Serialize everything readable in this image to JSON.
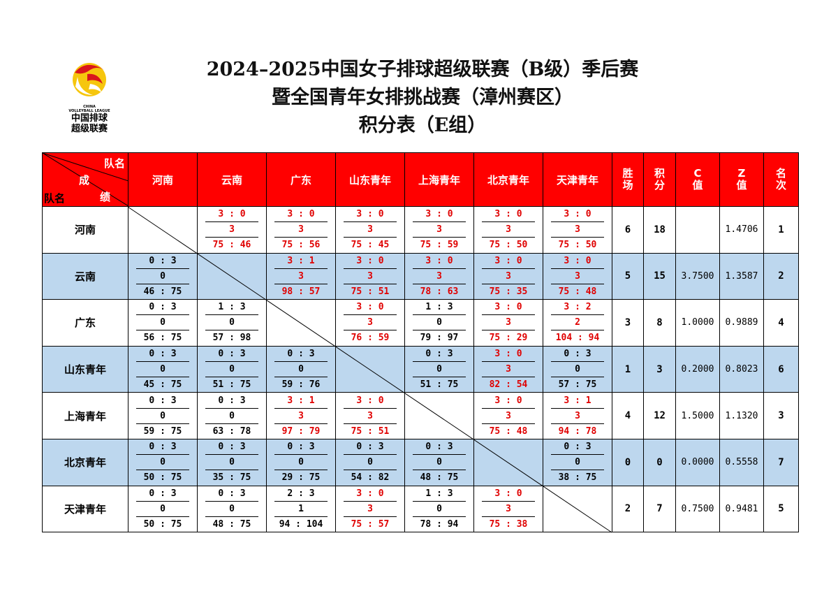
{
  "logo": {
    "lines": [
      "CHINA",
      "VOLLEYBALL LEAGUE",
      "中国排球",
      "超级联赛"
    ]
  },
  "header": {
    "title": [
      "2024–2025中国女子排球超级联赛（B级）季后赛",
      "暨全国青年女排挑战赛（漳州赛区）",
      "积分表（E组）"
    ]
  },
  "table": {
    "corner": {
      "top": "队名",
      "mid": "成",
      "low": "绩",
      "left": "队名"
    },
    "columns": [
      "河南",
      "云南",
      "广东",
      "山东青年",
      "上海青年",
      "北京青年",
      "天津青年"
    ],
    "stat_columns": [
      "胜场",
      "积分",
      "C值",
      "Z值",
      "名次"
    ],
    "rows": [
      {
        "team": "河南",
        "cells": [
          null,
          {
            "score": "3 : 0",
            "points": "3",
            "ratio": "75 : 46"
          },
          {
            "score": "3 : 0",
            "points": "3",
            "ratio": "75 : 56"
          },
          {
            "score": "3 : 0",
            "points": "3",
            "ratio": "75 : 45"
          },
          {
            "score": "3 : 0",
            "points": "3",
            "ratio": "75 : 59"
          },
          {
            "score": "3 : 0",
            "points": "3",
            "ratio": "75 : 50"
          },
          {
            "score": "3 : 0",
            "points": "3",
            "ratio": "75 : 50"
          }
        ],
        "stats": [
          "6",
          "18",
          null,
          "1.4706",
          "1"
        ]
      },
      {
        "team": "云南",
        "cells": [
          {
            "score": "0 : 3",
            "points": "0",
            "ratio": "46 : 75"
          },
          null,
          {
            "score": "3 : 1",
            "points": "3",
            "ratio": "98 : 57"
          },
          {
            "score": "3 : 0",
            "points": "3",
            "ratio": "75 : 51"
          },
          {
            "score": "3 : 0",
            "points": "3",
            "ratio": "78 : 63"
          },
          {
            "score": "3 : 0",
            "points": "3",
            "ratio": "75 : 35"
          },
          {
            "score": "3 : 0",
            "points": "3",
            "ratio": "75 : 48"
          }
        ],
        "stats": [
          "5",
          "15",
          "3.7500",
          "1.3587",
          "2"
        ]
      },
      {
        "team": "广东",
        "cells": [
          {
            "score": "0 : 3",
            "points": "0",
            "ratio": "56 : 75"
          },
          {
            "score": "1 : 3",
            "points": "0",
            "ratio": "57 : 98"
          },
          null,
          {
            "score": "3 : 0",
            "points": "3",
            "ratio": "76 : 59"
          },
          {
            "score": "1 : 3",
            "points": "0",
            "ratio": "79 : 97"
          },
          {
            "score": "3 : 0",
            "points": "3",
            "ratio": "75 : 29"
          },
          {
            "score": "3 : 2",
            "points": "2",
            "ratio": "104 : 94"
          }
        ],
        "stats": [
          "3",
          "8",
          "1.0000",
          "0.9889",
          "4"
        ]
      },
      {
        "team": "山东青年",
        "cells": [
          {
            "score": "0 : 3",
            "points": "0",
            "ratio": "45 : 75"
          },
          {
            "score": "0 : 3",
            "points": "0",
            "ratio": "51 : 75"
          },
          {
            "score": "0 : 3",
            "points": "0",
            "ratio": "59 : 76"
          },
          null,
          {
            "score": "0 : 3",
            "points": "0",
            "ratio": "51 : 75"
          },
          {
            "score": "3 : 0",
            "points": "3",
            "ratio": "82 : 54"
          },
          {
            "score": "0 : 3",
            "points": "0",
            "ratio": "57 : 75"
          }
        ],
        "stats": [
          "1",
          "3",
          "0.2000",
          "0.8023",
          "6"
        ]
      },
      {
        "team": "上海青年",
        "cells": [
          {
            "score": "0 : 3",
            "points": "0",
            "ratio": "59 : 75"
          },
          {
            "score": "0 : 3",
            "points": "0",
            "ratio": "63 : 78"
          },
          {
            "score": "3 : 1",
            "points": "3",
            "ratio": "97 : 79"
          },
          {
            "score": "3 : 0",
            "points": "3",
            "ratio": "75 : 51"
          },
          null,
          {
            "score": "3 : 0",
            "points": "3",
            "ratio": "75 : 48"
          },
          {
            "score": "3 : 1",
            "points": "3",
            "ratio": "94 : 78"
          }
        ],
        "stats": [
          "4",
          "12",
          "1.5000",
          "1.1320",
          "3"
        ]
      },
      {
        "team": "北京青年",
        "cells": [
          {
            "score": "0 : 3",
            "points": "0",
            "ratio": "50 : 75"
          },
          {
            "score": "0 : 3",
            "points": "0",
            "ratio": "35 : 75"
          },
          {
            "score": "0 : 3",
            "points": "0",
            "ratio": "29 : 75"
          },
          {
            "score": "0 : 3",
            "points": "0",
            "ratio": "54 : 82"
          },
          {
            "score": "0 : 3",
            "points": "0",
            "ratio": "48 : 75"
          },
          null,
          {
            "score": "0 : 3",
            "points": "0",
            "ratio": "38 : 75"
          }
        ],
        "stats": [
          "0",
          "0",
          "0.0000",
          "0.5558",
          "7"
        ]
      },
      {
        "team": "天津青年",
        "cells": [
          {
            "score": "0 : 3",
            "points": "0",
            "ratio": "50 : 75"
          },
          {
            "score": "0 : 3",
            "points": "0",
            "ratio": "48 : 75"
          },
          {
            "score": "2 : 3",
            "points": "1",
            "ratio": "94 : 104"
          },
          {
            "score": "3 : 0",
            "points": "3",
            "ratio": "75 : 57"
          },
          {
            "score": "1 : 3",
            "points": "0",
            "ratio": "78 : 94"
          },
          {
            "score": "3 : 0",
            "points": "3",
            "ratio": "75 : 38"
          },
          null
        ],
        "stats": [
          "2",
          "7",
          "0.7500",
          "0.9481",
          "5"
        ]
      }
    ]
  }
}
